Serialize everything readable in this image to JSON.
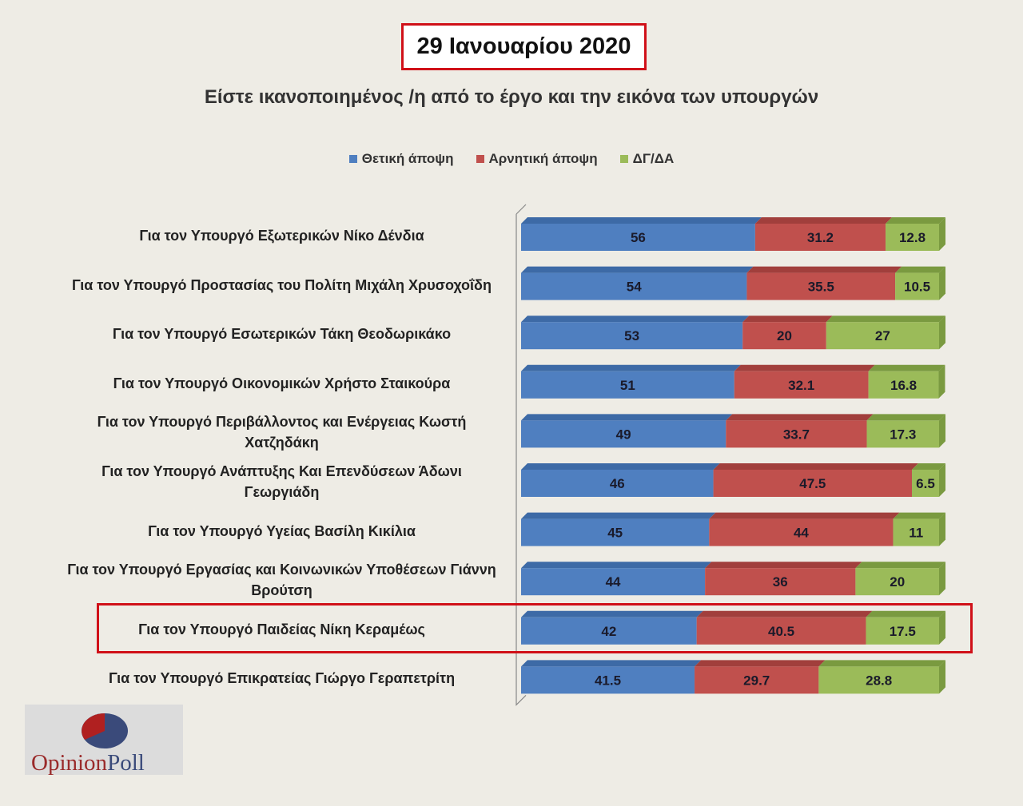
{
  "header": {
    "date": "29 Ιανουαρίου 2020"
  },
  "logo": {
    "text": "OpinionPoll"
  },
  "chart_data": {
    "type": "bar",
    "stacked": true,
    "orientation": "horizontal",
    "title": "Είστε ικανοποιημένος /η από το έργο και την εικόνα των υπουργών",
    "legend_position": "top",
    "categories": [
      "Για τον Υπουργό Εξωτερικών Νίκο Δένδια",
      "Για τον Υπουργό Προστασίας του Πολίτη Μιχάλη Χρυσοχοΐδη",
      "Για τον Υπουργό Εσωτερικών Τάκη Θεοδωρικάκο",
      "Για τον Υπουργό Οικονομικών Χρήστο Σταικούρα",
      "Για τον Υπουργό  Περιβάλλοντος και Ενέργειας Κωστή\nΧατζηδάκη",
      "Για τον Υπουργό Ανάπτυξης Και Επενδύσεων Άδωνι\nΓεωργιάδη",
      "Για τον Υπουργό Υγείας Βασίλη Κικίλια",
      "Για τον Υπουργό Εργασίας και Κοινωνικών Υποθέσεων Γιάννη\nΒρούτση",
      "Για τον Υπουργό Παιδείας Νίκη Κεραμέως",
      "Για τον Υπουργό Επικρατείας Γιώργο Γεραπετρίτη"
    ],
    "series": [
      {
        "name": "Θετική άποψη",
        "color": "#4f7fc0",
        "values": [
          56,
          54,
          53,
          51,
          49,
          46,
          45,
          44,
          42,
          41.5
        ]
      },
      {
        "name": "Αρνητική άποψη",
        "color": "#c0504d",
        "values": [
          31.2,
          35.5,
          20,
          32.1,
          33.7,
          47.5,
          44,
          36,
          40.5,
          29.7
        ]
      },
      {
        "name": "ΔΓ/ΔΑ",
        "color": "#9bbb59",
        "values": [
          12.8,
          10.5,
          27,
          16.8,
          17.3,
          6.5,
          11,
          20,
          17.5,
          28.8
        ]
      }
    ],
    "xlim": [
      0,
      100
    ],
    "highlighted_category_index": 8
  }
}
